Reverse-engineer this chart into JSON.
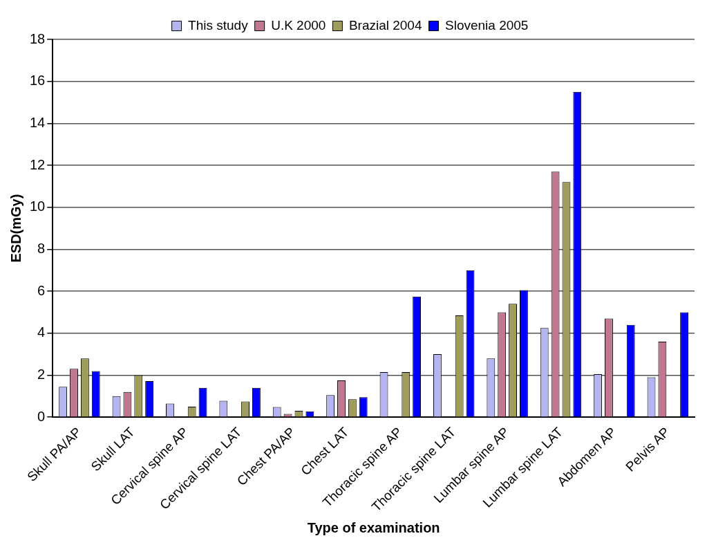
{
  "chart_data": {
    "type": "bar",
    "xlabel": "Type of examination",
    "ylabel": "ESD(mGy)",
    "categories": [
      "Skull PA/AP",
      "Skull LAT",
      "Cervical spine AP",
      "Cervical spine LAT",
      "Chest PA/AP",
      "Chest LAT",
      "Thoracic spine AP",
      "Thoracic spine LAT",
      "Lumbar spine AP",
      "Lumbar spine LAT",
      "Abdomen AP",
      "Pelvis AP"
    ],
    "series": [
      {
        "name": "This study",
        "color": "#b4b4f0",
        "values": [
          1.45,
          1.0,
          0.65,
          0.78,
          0.48,
          1.05,
          2.15,
          3.0,
          2.8,
          4.25,
          2.05,
          1.9
        ]
      },
      {
        "name": "U.K 2000",
        "color": "#c07890",
        "values": [
          2.3,
          1.2,
          null,
          null,
          0.15,
          1.75,
          null,
          null,
          5.0,
          11.7,
          4.7,
          3.6
        ]
      },
      {
        "name": "Brazial 2004",
        "color": "#a09c5c",
        "values": [
          2.8,
          2.0,
          0.5,
          0.75,
          0.3,
          0.85,
          2.15,
          4.85,
          5.4,
          11.2,
          null,
          null
        ]
      },
      {
        "name": "Slovenia 2005",
        "color": "#0000ff",
        "values": [
          2.2,
          1.72,
          1.4,
          1.4,
          0.28,
          0.95,
          5.75,
          7.0,
          6.05,
          15.5,
          4.4,
          5.0
        ]
      }
    ],
    "ylim": [
      0,
      18
    ],
    "yticks": [
      0,
      2,
      4,
      6,
      8,
      10,
      12,
      14,
      16,
      18
    ],
    "grid": "y",
    "legend": "top"
  }
}
